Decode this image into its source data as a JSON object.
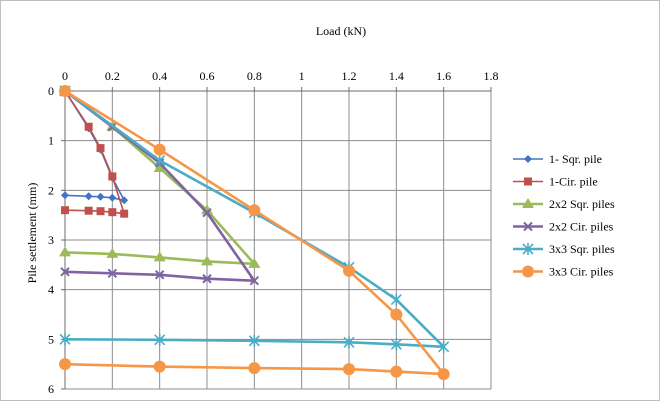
{
  "chart_data": {
    "type": "line",
    "title": "",
    "xlabel": "Load (kN)",
    "ylabel": "Pile settlement (mm)",
    "xlim": [
      0,
      1.8
    ],
    "ylim": [
      0,
      6
    ],
    "y_reversed": true,
    "x_axis_position": "top",
    "grid": true,
    "legend_position": "right",
    "x_ticks": [
      "0",
      "0.2",
      "0.4",
      "0.6",
      "0.8",
      "1",
      "1.2",
      "1.4",
      "1.6",
      "1.8"
    ],
    "y_ticks": [
      "0",
      "1",
      "2",
      "3",
      "4",
      "5",
      "6"
    ],
    "series": [
      {
        "name": "1- Sqr. pile",
        "color": "#4472C4",
        "marker": "diamond",
        "points": [
          [
            0,
            0
          ],
          [
            0.1,
            0.75
          ],
          [
            0.15,
            1.18
          ],
          [
            0.2,
            1.75
          ],
          [
            0.25,
            2.2
          ],
          [
            0.2,
            2.15
          ],
          [
            0.15,
            2.13
          ],
          [
            0.1,
            2.12
          ],
          [
            0,
            2.1
          ]
        ]
      },
      {
        "name": "1-Cir. pile",
        "color": "#C0504D",
        "marker": "square",
        "points": [
          [
            0,
            0
          ],
          [
            0.1,
            0.72
          ],
          [
            0.15,
            1.15
          ],
          [
            0.2,
            1.72
          ],
          [
            0.25,
            2.47
          ],
          [
            0.2,
            2.44
          ],
          [
            0.15,
            2.42
          ],
          [
            0.1,
            2.41
          ],
          [
            0,
            2.4
          ]
        ]
      },
      {
        "name": "2x2 Sqr. piles",
        "color": "#9BBB59",
        "marker": "triangle",
        "points": [
          [
            0,
            0
          ],
          [
            0.2,
            0.72
          ],
          [
            0.4,
            1.55
          ],
          [
            0.6,
            2.4
          ],
          [
            0.8,
            3.48
          ],
          [
            0.6,
            3.43
          ],
          [
            0.4,
            3.35
          ],
          [
            0.2,
            3.28
          ],
          [
            0,
            3.25
          ]
        ]
      },
      {
        "name": "2x2 Cir. piles",
        "color": "#8064A2",
        "marker": "x",
        "points": [
          [
            0,
            0
          ],
          [
            0.2,
            0.72
          ],
          [
            0.4,
            1.45
          ],
          [
            0.6,
            2.45
          ],
          [
            0.8,
            3.82
          ],
          [
            0.6,
            3.78
          ],
          [
            0.4,
            3.7
          ],
          [
            0.2,
            3.67
          ],
          [
            0,
            3.64
          ]
        ]
      },
      {
        "name": "3x3 Sqr. piles",
        "color": "#4BACC6",
        "marker": "star",
        "points": [
          [
            0,
            0
          ],
          [
            0.4,
            1.4
          ],
          [
            0.8,
            2.45
          ],
          [
            1.2,
            3.55
          ],
          [
            1.4,
            4.2
          ],
          [
            1.6,
            5.15
          ],
          [
            1.4,
            5.1
          ],
          [
            1.2,
            5.06
          ],
          [
            0.8,
            5.03
          ],
          [
            0.4,
            5.01
          ],
          [
            0,
            5.0
          ]
        ]
      },
      {
        "name": "3x3 Cir. piles",
        "color": "#F79646",
        "marker": "circle",
        "points": [
          [
            0,
            0
          ],
          [
            0.4,
            1.18
          ],
          [
            0.8,
            2.4
          ],
          [
            1.2,
            3.62
          ],
          [
            1.4,
            4.5
          ],
          [
            1.6,
            5.7
          ],
          [
            1.4,
            5.65
          ],
          [
            1.2,
            5.6
          ],
          [
            0.8,
            5.58
          ],
          [
            0.4,
            5.55
          ],
          [
            0,
            5.5
          ]
        ]
      }
    ]
  }
}
